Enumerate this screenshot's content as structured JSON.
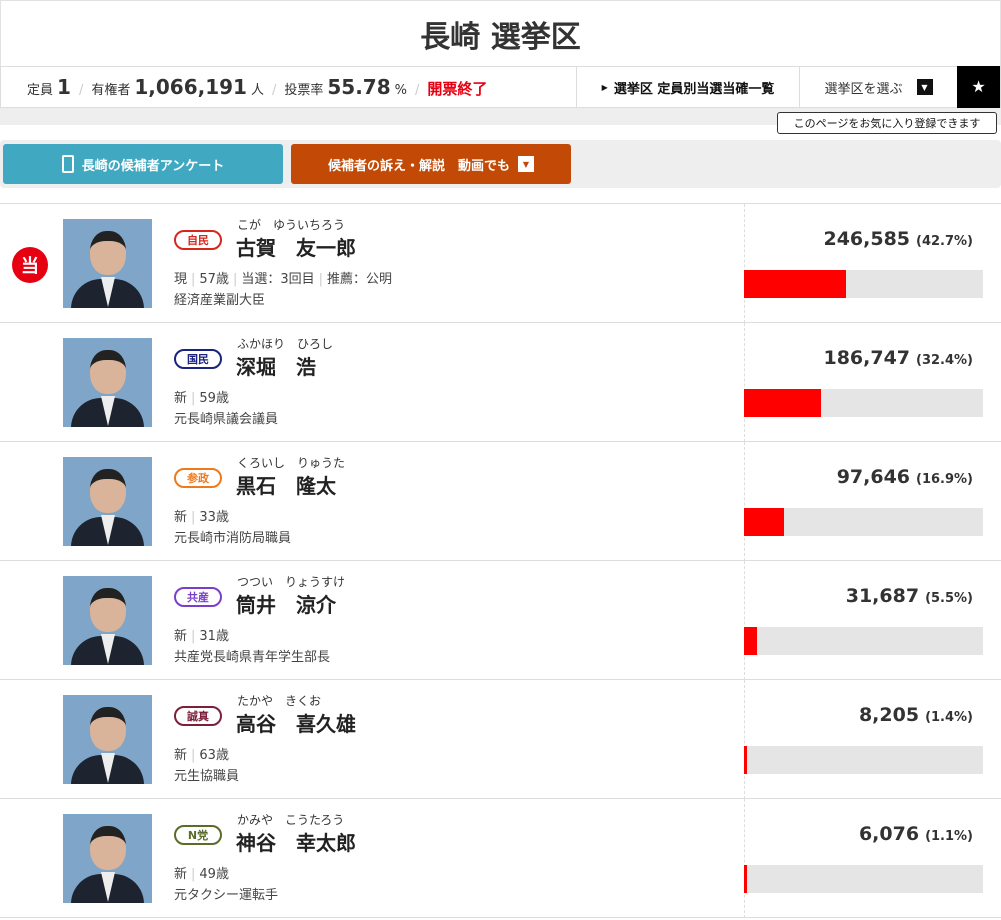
{
  "header": {
    "title": "長崎 選挙区"
  },
  "info": {
    "seats_label": "定員",
    "seats": "1",
    "electorate_label": "有権者",
    "electorate": "1,066,191",
    "electorate_unit": "人",
    "turnout_label": "投票率",
    "turnout": "55.78",
    "turnout_unit": "%",
    "status": "開票終了",
    "winners_link": "選挙区 定員別当選当確一覧",
    "select_label": "選挙区を選ぶ",
    "favorite_tooltip": "このページをお気に入り登録できます"
  },
  "buttons": {
    "survey": "長崎の候補者アンケート",
    "video": "候補者の訴え・解説　動画でも"
  },
  "colors": {
    "accent": "#e60012",
    "survey_button": "#40a8c0",
    "video_button": "#c24a06"
  },
  "winner_badge": "当",
  "candidates": [
    {
      "winner": true,
      "party": "自民",
      "party_color": "#d7261e",
      "kana": "こが　ゆういちろう",
      "name": "古賀　友一郎",
      "status": "現",
      "age": "57歳",
      "elected": "当選：3回目",
      "endorse": "推薦：公明",
      "job": "経済産業副大臣",
      "votes": "246,585",
      "pct": "(42.7%)",
      "share": 42.7
    },
    {
      "winner": false,
      "party": "国民",
      "party_color": "#1a237e",
      "kana": "ふかほり　ひろし",
      "name": "深堀　浩",
      "status": "新",
      "age": "59歳",
      "job": "元長崎県議会議員",
      "votes": "186,747",
      "pct": "(32.4%)",
      "share": 32.4
    },
    {
      "winner": false,
      "party": "参政",
      "party_color": "#ee7a1d",
      "kana": "くろいし　りゅうた",
      "name": "黒石　隆太",
      "status": "新",
      "age": "33歳",
      "job": "元長崎市消防局職員",
      "votes": "97,646",
      "pct": "(16.9%)",
      "share": 16.9
    },
    {
      "winner": false,
      "party": "共産",
      "party_color": "#7a3fc8",
      "kana": "つつい　りょうすけ",
      "name": "筒井　涼介",
      "status": "新",
      "age": "31歳",
      "job": "共産党長崎県青年学生部長",
      "votes": "31,687",
      "pct": "(5.5%)",
      "share": 5.5
    },
    {
      "winner": false,
      "party": "誠真",
      "party_color": "#7b1f3a",
      "kana": "たかや　きくお",
      "name": "高谷　喜久雄",
      "status": "新",
      "age": "63歳",
      "job": "元生協職員",
      "votes": "8,205",
      "pct": "(1.4%)",
      "share": 1.4
    },
    {
      "winner": false,
      "party": "N党",
      "party_color": "#5a6b2a",
      "kana": "かみや　こうたろう",
      "name": "神谷　幸太郎",
      "status": "新",
      "age": "49歳",
      "job": "元タクシー運転手",
      "votes": "6,076",
      "pct": "(1.1%)",
      "share": 1.1
    }
  ]
}
